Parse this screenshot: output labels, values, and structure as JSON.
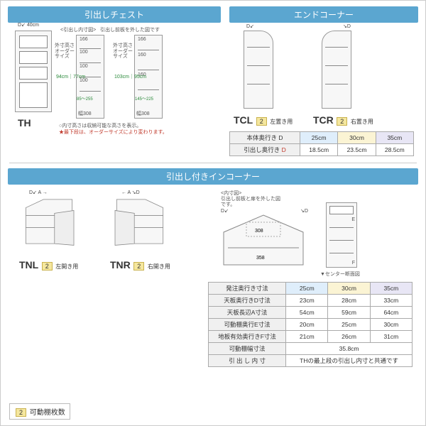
{
  "sections": {
    "chest": {
      "title": "引出しチェスト",
      "width_label": "40cm",
      "inner_diagram_label": "<引出し内寸図>",
      "inner_note": "引出し前板を外した図です",
      "left_inner": {
        "rows": [
          "166",
          "100",
          "100",
          "100",
          "85～255",
          "幅308"
        ],
        "outer_label": "外寸高さオーダーサイズ",
        "range": "94cm｜77cm"
      },
      "right_inner": {
        "rows": [
          "166",
          "160",
          "160",
          "145～225",
          "幅308"
        ],
        "outer_label": "外寸高さオーダーサイズ",
        "range": "103cm｜95cm"
      },
      "code": "TH",
      "note1": "○内寸高さは収納可能な高さを表示。",
      "note2": "★最下段は、オーダーサイズにより変わります。"
    },
    "endcorner": {
      "title": "エンドコーナー",
      "tcl": {
        "code": "TCL",
        "badge": "2",
        "text": "左置き用"
      },
      "tcr": {
        "code": "TCR",
        "badge": "2",
        "text": "右置き用"
      },
      "table": {
        "headers": [
          "本体奥行き D",
          "引出し奥行き D"
        ],
        "d_red": true,
        "cols": [
          {
            "d": "25cm",
            "d2": "18.5cm",
            "cls": "col-blue"
          },
          {
            "d": "30cm",
            "d2": "23.5cm",
            "cls": "col-yellow"
          },
          {
            "d": "35cm",
            "d2": "28.5cm",
            "cls": "col-lav"
          }
        ]
      }
    },
    "incorner": {
      "title": "引出し付きインコーナー",
      "tnl": {
        "code": "TNL",
        "badge": "2",
        "text": "左開き用"
      },
      "tnr": {
        "code": "TNR",
        "badge": "2",
        "text": "右開き用"
      },
      "inner_label": "<内寸図>",
      "inner_note": "引出し前板と扉を外した図です。",
      "center_section": "▼センター断面図",
      "inner_dims": {
        "w1": "308",
        "w2": "358"
      },
      "table": {
        "rows": [
          {
            "label": "発注奥行き寸法",
            "vals": [
              "25cm",
              "30cm",
              "35cm"
            ],
            "cls": [
              "col-blue",
              "col-yellow",
              "col-lav"
            ]
          },
          {
            "label": "天板奥行きD寸法",
            "vals": [
              "23cm",
              "28cm",
              "33cm"
            ]
          },
          {
            "label": "天板長辺A寸法",
            "vals": [
              "54cm",
              "59cm",
              "64cm"
            ]
          },
          {
            "label": "可動棚奥行E寸法",
            "vals": [
              "20cm",
              "25cm",
              "30cm"
            ]
          },
          {
            "label": "地板有効奥行きF寸法",
            "vals": [
              "21cm",
              "26cm",
              "31cm"
            ]
          },
          {
            "label": "可動棚幅寸法",
            "vals": [
              "35.8cm"
            ],
            "span": 3
          },
          {
            "label": "引 出 し 内 寸",
            "vals": [
              "THの最上段の引出し内寸と共通です"
            ],
            "span": 3
          }
        ]
      }
    }
  },
  "legend": {
    "badge": "2",
    "text": "可動棚枚数"
  }
}
